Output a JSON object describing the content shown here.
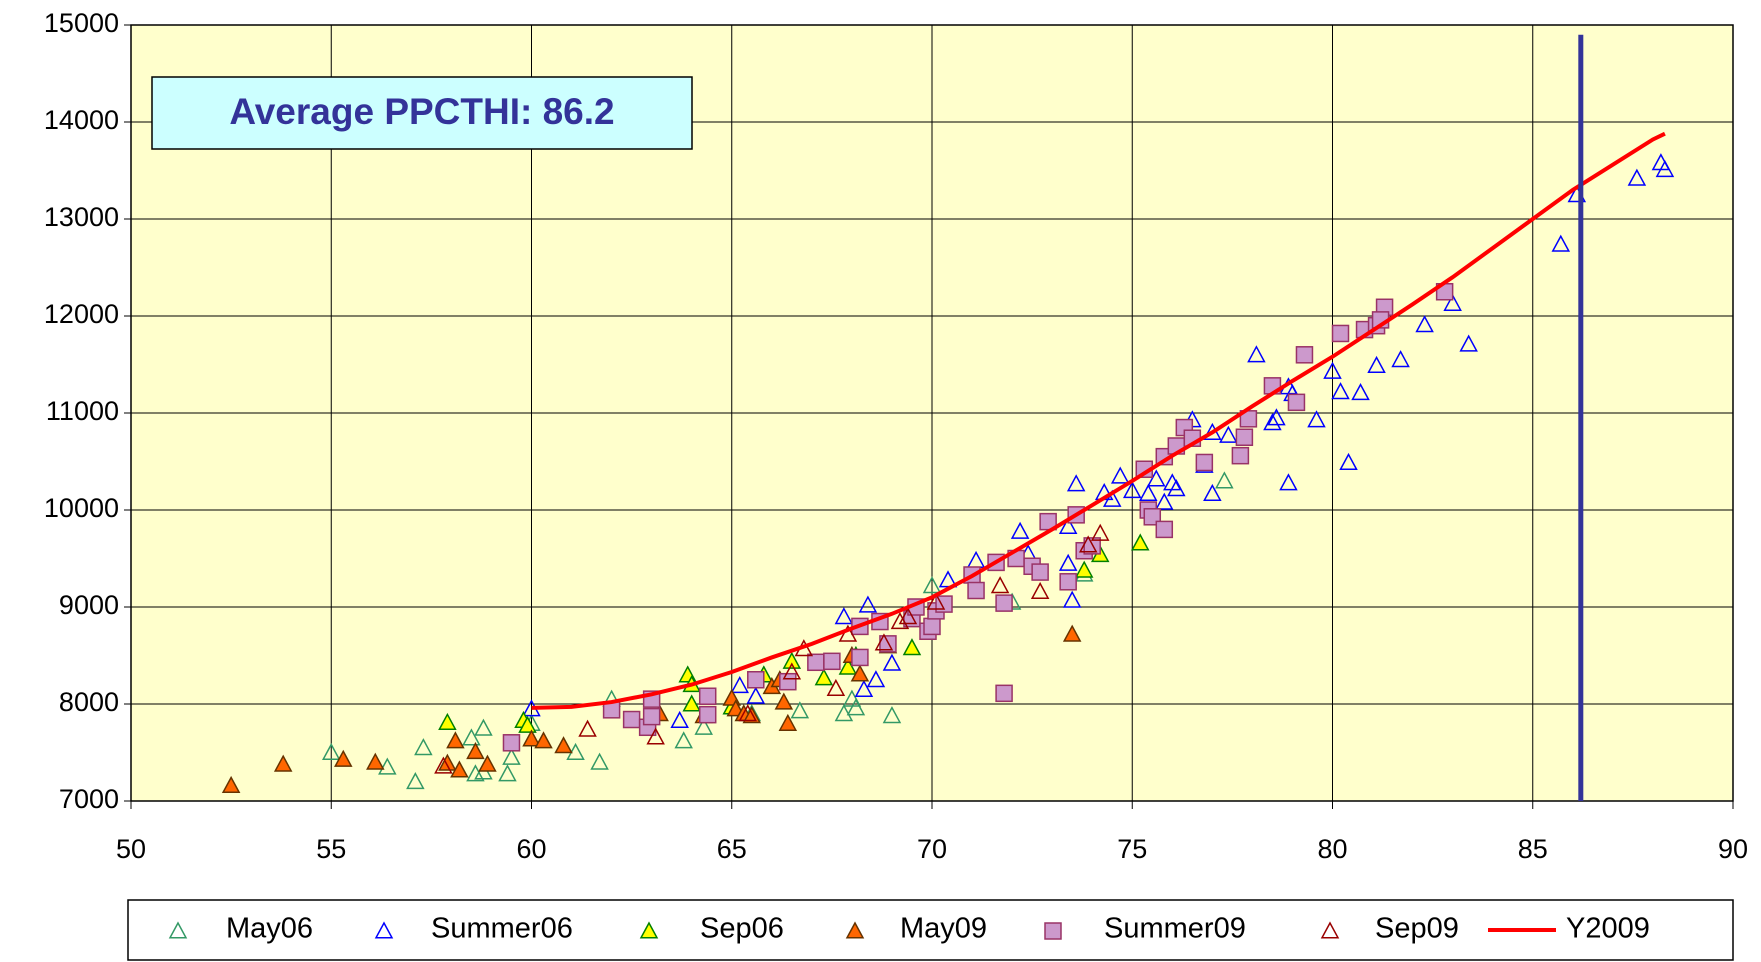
{
  "chart_data": {
    "type": "scatter",
    "annotation": "Average PPCTHI: 86.2",
    "vline": 86.2,
    "vline_color": "#333399",
    "xlim": [
      50,
      90
    ],
    "xticks": [
      50,
      55,
      60,
      65,
      70,
      75,
      80,
      85,
      90
    ],
    "ylim": [
      7000,
      15000
    ],
    "yticks": [
      7000,
      8000,
      9000,
      10000,
      11000,
      12000,
      13000,
      14000,
      15000
    ],
    "grid": true,
    "legend": "bottom",
    "background": "#ffffcc",
    "series": [
      {
        "name": "May06",
        "marker": "triangle-open",
        "color": "#339966",
        "x": [
          55,
          56.4,
          57.1,
          57.3,
          58.5,
          58.6,
          58.8,
          58.8,
          59.4,
          59.5,
          60,
          61.1,
          61.7,
          62,
          63.8,
          64.3,
          65.5,
          66.7,
          67.8,
          68,
          68.1,
          69,
          70,
          72,
          73.8,
          77.3,
          65.8
        ],
        "values": [
          7500,
          7350,
          7200,
          7550,
          7650,
          7280,
          7300,
          7750,
          7280,
          7450,
          7800,
          7500,
          7400,
          8050,
          7620,
          7760,
          7900,
          7930,
          7900,
          8050,
          7960,
          7880,
          9220,
          9050,
          9340,
          10300,
          8300
        ]
      },
      {
        "name": "Summer06",
        "marker": "triangle-open",
        "color": "#0000ff",
        "x": [
          60,
          63.7,
          65.2,
          65.6,
          67.8,
          68.4,
          68.6,
          68.3,
          69,
          70.4,
          71.1,
          72.2,
          72.4,
          73.4,
          73.5,
          73.6,
          73.4,
          74.3,
          74.5,
          74.7,
          75,
          75.4,
          75.6,
          75.8,
          76,
          76.1,
          76.5,
          76.8,
          77,
          77,
          77.4,
          78.1,
          78.5,
          78.6,
          78.9,
          78.9,
          79,
          79.6,
          80,
          80.2,
          80.4,
          80.7,
          81.1,
          81.7,
          82.3,
          83,
          83.4,
          85.7,
          86.1,
          87.6,
          88.2,
          88.3
        ],
        "values": [
          7950,
          7830,
          8190,
          8080,
          8900,
          9020,
          8250,
          8150,
          8420,
          9280,
          9480,
          9780,
          9550,
          9830,
          9070,
          10270,
          9450,
          10180,
          10110,
          10350,
          10200,
          10170,
          10320,
          10080,
          10280,
          10220,
          10930,
          10460,
          10800,
          10170,
          10770,
          11600,
          10900,
          10950,
          10280,
          11270,
          11200,
          10930,
          11430,
          11220,
          10490,
          11210,
          11490,
          11550,
          11910,
          12130,
          11710,
          12740,
          13250,
          13420,
          13580,
          13510
        ]
      },
      {
        "name": "Sep06",
        "marker": "triangle",
        "color": "#ffff00",
        "edge_color": "#008000",
        "x": [
          57.9,
          59.8,
          59.9,
          63.9,
          64,
          64,
          65,
          65.8,
          66.5,
          67.3,
          67.9,
          68.1,
          69.5,
          73.8,
          74.2,
          75.2
        ],
        "values": [
          7810,
          7830,
          7780,
          8300,
          8200,
          8000,
          7970,
          8300,
          8440,
          8270,
          8380,
          8500,
          8580,
          9380,
          9540,
          9660
        ]
      },
      {
        "name": "May09",
        "marker": "triangle",
        "color": "#ff6600",
        "edge_color": "#663300",
        "x": [
          52.5,
          53.8,
          55.3,
          56.1,
          57.9,
          58.1,
          58.2,
          58.6,
          58.9,
          60,
          60.3,
          60.8,
          63.2,
          64.3,
          65,
          65.1,
          65.3,
          66,
          66.3,
          66.4,
          68,
          68.2,
          68.9,
          73.5,
          66.2,
          65.5
        ],
        "values": [
          7160,
          7380,
          7430,
          7400,
          7390,
          7620,
          7320,
          7510,
          7380,
          7640,
          7620,
          7570,
          7900,
          7880,
          8060,
          7950,
          7900,
          8180,
          8020,
          7800,
          8500,
          8310,
          8600,
          8720,
          8250,
          7880
        ]
      },
      {
        "name": "Summer09",
        "marker": "square",
        "color": "#cc99cc",
        "edge_color": "#993366",
        "x": [
          59.5,
          62,
          62.5,
          62.9,
          63,
          63,
          64.4,
          64.4,
          65.6,
          66.4,
          67.1,
          67.5,
          68.2,
          68.2,
          68.7,
          68.9,
          69.5,
          69.6,
          69.9,
          70,
          70.1,
          70.3,
          71,
          71.1,
          71.6,
          71.8,
          71.8,
          72.1,
          72.5,
          72.7,
          72.9,
          73.4,
          73.6,
          73.8,
          74,
          75.3,
          75.4,
          75.5,
          75.8,
          75.8,
          76.1,
          76.3,
          76.5,
          76.8,
          77.7,
          77.8,
          77.9,
          78.5,
          79.1,
          79.3,
          80.2,
          80.8,
          81.1,
          81.3,
          82.8,
          81.2
        ],
        "values": [
          7600,
          7940,
          7840,
          7760,
          8050,
          7870,
          7890,
          8080,
          8250,
          8230,
          8430,
          8440,
          8480,
          8800,
          8850,
          8620,
          8880,
          9000,
          8750,
          8800,
          8960,
          9030,
          9330,
          9170,
          9460,
          9040,
          8110,
          9500,
          9420,
          9360,
          9880,
          9260,
          9950,
          9580,
          9630,
          10420,
          10000,
          9930,
          9800,
          10550,
          10660,
          10850,
          10740,
          10490,
          10560,
          10750,
          10940,
          11280,
          11110,
          11600,
          11820,
          11860,
          11900,
          12090,
          12250,
          11960
        ]
      },
      {
        "name": "Sep09",
        "marker": "triangle-open",
        "color": "#990000",
        "x": [
          57.8,
          61.4,
          63.1,
          65.4,
          66.5,
          66.8,
          67.6,
          67.9,
          68.8,
          69.2,
          69.4,
          70.1,
          71.7,
          72.7,
          73.9,
          74.2
        ],
        "values": [
          7360,
          7740,
          7660,
          7900,
          8330,
          8570,
          8160,
          8720,
          8630,
          8850,
          8900,
          9050,
          9220,
          9160,
          9640,
          9760
        ]
      },
      {
        "name": "Y2009",
        "marker": "line",
        "color": "#ff0000",
        "x": [
          60,
          61,
          62,
          63,
          64,
          65,
          66,
          67,
          68,
          69,
          70,
          71,
          72,
          73,
          74,
          75,
          76,
          77,
          78,
          79,
          80,
          81,
          82,
          83,
          84,
          85,
          86,
          87,
          88,
          88.3
        ],
        "values": [
          7960,
          7970,
          8020,
          8100,
          8200,
          8330,
          8480,
          8620,
          8780,
          8930,
          9100,
          9320,
          9560,
          9800,
          10050,
          10300,
          10560,
          10800,
          11070,
          11330,
          11580,
          11850,
          12120,
          12400,
          12700,
          13000,
          13300,
          13560,
          13820,
          13880
        ]
      }
    ]
  }
}
